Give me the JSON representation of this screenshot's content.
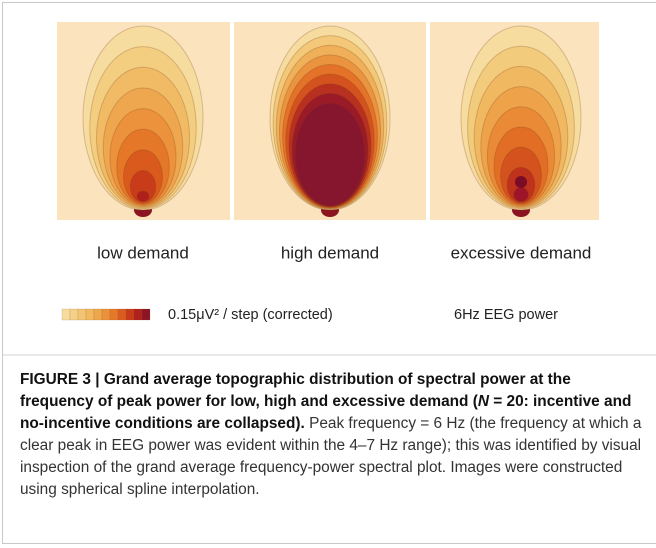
{
  "figure": {
    "panels": [
      "low demand",
      "high demand",
      "excessive demand"
    ],
    "scale_label": "0.15μV² / step (corrected)",
    "measure": "6Hz EEG power"
  },
  "caption": {
    "label": "FIGURE 3 | Grand average topographic distribution of spectral power at the frequency of peak power for low, high and excessive demand (",
    "italic": "N",
    "title_rest": " = 20: incentive and no-incentive conditions are collapsed).",
    "body": "Peak frequency = 6 Hz (the frequency at which a clear peak in EEG power was evident within the 4–7 Hz range); this was identified by visual inspection of the grand average frequency-power spectral plot. Images were constructed using spherical spline interpolation."
  }
}
